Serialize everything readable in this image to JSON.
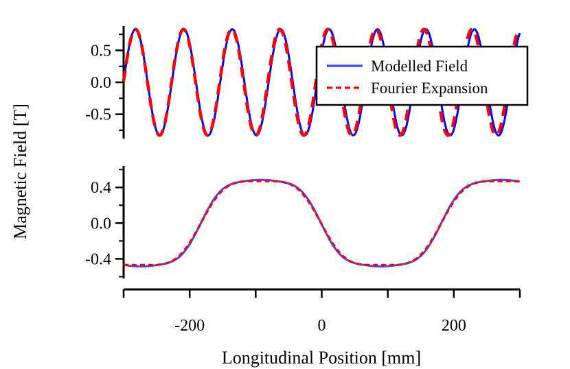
{
  "chart_data": [
    {
      "type": "line",
      "panel": "top",
      "xlim": [
        -300,
        300
      ],
      "ylim": [
        -0.88,
        0.88
      ],
      "yticks": [
        0.5,
        0.0,
        -0.5
      ],
      "ytick_labels": [
        "0.5",
        "0.0",
        "-0.5"
      ],
      "series": [
        {
          "name": "Modelled Field",
          "color": "#0000ff",
          "style": "solid",
          "function": "A*cos(2*pi*(x - x0)/period)",
          "amplitude": 0.83,
          "period": 73.3,
          "x0": -282
        },
        {
          "name": "Fourier Expansion",
          "color": "#ff0000",
          "style": "dashed",
          "function": "A*cos(2*pi*(x - x0)/period)",
          "amplitude": 0.83,
          "period": 72.8,
          "x0": -282
        }
      ]
    },
    {
      "type": "line",
      "panel": "bottom",
      "xlim": [
        -300,
        300
      ],
      "ylim": [
        -0.62,
        0.64
      ],
      "yticks": [
        0.4,
        0.0,
        -0.4
      ],
      "ytick_labels": [
        "0.4",
        "0.0",
        "-0.4"
      ],
      "xticks": [
        -200,
        0,
        200
      ],
      "xtick_labels": [
        "-200",
        "0",
        "200"
      ],
      "series": [
        {
          "name": "Modelled Field",
          "color": "#4444ff",
          "style": "solid",
          "period": 364,
          "x0": -183,
          "harmonics": [
            [
              1,
              0.55
            ],
            [
              3,
              0.08
            ],
            [
              5,
              0.015
            ]
          ]
        },
        {
          "name": "Fourier Expansion",
          "color": "#ff0000",
          "style": "dashed",
          "period": 364,
          "x0": -183,
          "harmonics": [
            [
              1,
              0.54
            ],
            [
              3,
              0.075
            ],
            [
              5,
              0.005
            ]
          ]
        }
      ]
    }
  ],
  "labels": {
    "ylabel": "Magnetic Field [T]",
    "xlabel": "Longitudinal Position [mm]"
  },
  "legend": {
    "placement": "top-right",
    "entries": [
      {
        "label": "Modelled Field",
        "color": "#4444ff",
        "style": "solid"
      },
      {
        "label": "Fourier Expansion",
        "color": "#ff0000",
        "style": "dashed"
      }
    ]
  }
}
